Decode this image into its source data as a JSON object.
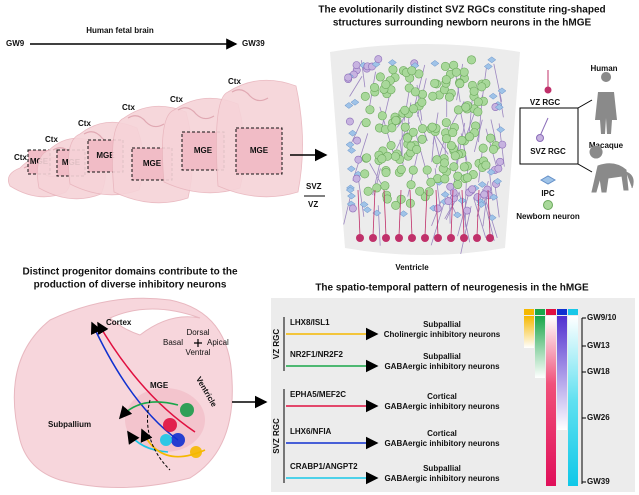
{
  "top_left": {
    "start": "GW9",
    "label": "Human fetal brain",
    "end": "GW39",
    "sections": [
      {
        "region": "Ctx",
        "domain": "MGE"
      },
      {
        "region": "Ctx",
        "domain": "MGE"
      },
      {
        "region": "Ctx",
        "domain": "MGE"
      },
      {
        "region": "Ctx",
        "domain": "MGE"
      },
      {
        "region": "Ctx",
        "domain": "MGE"
      },
      {
        "region": "Ctx",
        "domain": "MGE"
      }
    ]
  },
  "top_right": {
    "title": [
      "The evolutionarily distinct SVZ RGCs constitute ring-shaped",
      "structures surrounding newborn neurons in the hMGE"
    ],
    "zones": [
      "SVZ",
      "VZ"
    ],
    "ventricle": "Ventricle",
    "legend": [
      "VZ RGC",
      "SVZ RGC",
      "IPC",
      "Newborn neuron"
    ],
    "species": [
      "Human",
      "Macaque"
    ]
  },
  "bottom_left": {
    "title": [
      "Distinct progenitor domains contribute to the",
      "production of diverse inhibitory neurons"
    ],
    "labels": {
      "cortex": "Cortex",
      "dorsal": "Dorsal",
      "basal": "Basal",
      "apical": "Apical",
      "ventral": "Ventral",
      "mge": "MGE",
      "ventricle": "Ventricle",
      "subpallium": "Subpallium"
    }
  },
  "bottom_right": {
    "title": "The spatio-temporal pattern of neurogenesis in the hMGE",
    "groups": [
      {
        "name": "VZ RGC",
        "rows": [
          {
            "markers": "LHX8/ISL1",
            "fate": [
              "Subpallial",
              "Cholinergic inhibitory neurons"
            ]
          },
          {
            "markers": "NR2F1/NR2F2",
            "fate": [
              "Subpallial",
              "GABAergic  inhibitory neurons"
            ]
          }
        ]
      },
      {
        "name": "SVZ RGC",
        "rows": [
          {
            "markers": "EPHA5/MEF2C",
            "fate": [
              "Cortical",
              "GABAergic inhibitory neurons"
            ]
          },
          {
            "markers": "LHX6/NFIA",
            "fate": [
              "Cortical",
              "GABAergic inhibitory neurons"
            ]
          },
          {
            "markers": "CRABP1/ANGPT2",
            "fate": [
              "Subpallial",
              "GABAergic  inhibitory neurons"
            ]
          }
        ]
      }
    ],
    "timeline": [
      "GW9/10",
      "GW13",
      "GW18",
      "GW26",
      "GW39"
    ]
  }
}
